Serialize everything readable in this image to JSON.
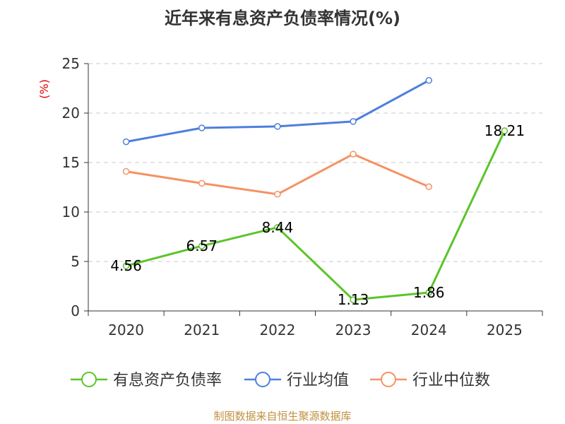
{
  "chart_data": {
    "type": "line",
    "title": "近年来有息资产负债率情况(%)",
    "ylabel": "(%)",
    "xlabel": "",
    "categories": [
      "2020",
      "2021",
      "2022",
      "2023",
      "2024",
      "2025"
    ],
    "ylim": [
      0,
      25
    ],
    "yticks": [
      0,
      5,
      10,
      15,
      20,
      25
    ],
    "grid": true,
    "legend_position": "bottom",
    "series": [
      {
        "name": "有息资产负债率",
        "color": "#5bc42a",
        "values": [
          4.56,
          6.57,
          8.44,
          1.13,
          1.86,
          18.21
        ],
        "data_labels": [
          "4.56",
          "6.57",
          "8.44",
          "1.13",
          "1.86",
          "18.21"
        ]
      },
      {
        "name": "行业均值",
        "color": "#4e7fdc",
        "values": [
          17.1,
          18.5,
          18.65,
          19.15,
          23.3,
          null
        ]
      },
      {
        "name": "行业中位数",
        "color": "#f59264",
        "values": [
          14.1,
          12.9,
          11.8,
          15.85,
          12.55,
          null
        ]
      }
    ]
  },
  "colors": {
    "axis": "#333333",
    "grid": "#c8c8c8",
    "unit_label": "#e00000"
  },
  "source": "制图数据来自恒生聚源数据库"
}
